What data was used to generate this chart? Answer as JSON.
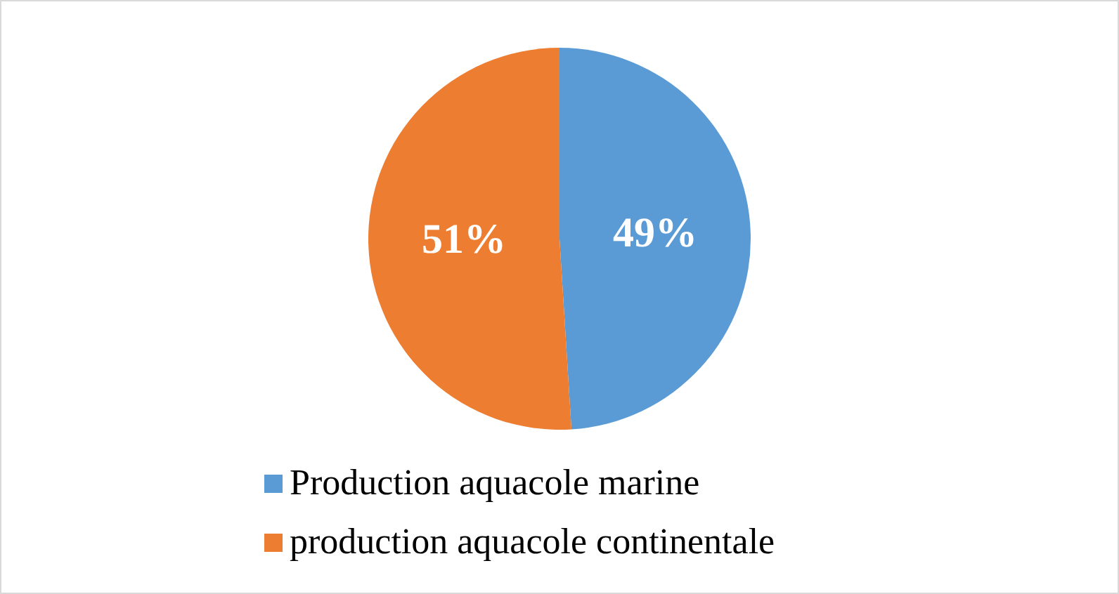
{
  "chart_data": {
    "type": "pie",
    "categories": [
      "Production aquacole marine",
      "production aquacole continentale"
    ],
    "values": [
      49,
      51
    ],
    "colors": [
      "#5b9bd5",
      "#ed7d31"
    ],
    "value_labels": [
      "49%",
      "51%"
    ],
    "legend": "bottom"
  }
}
